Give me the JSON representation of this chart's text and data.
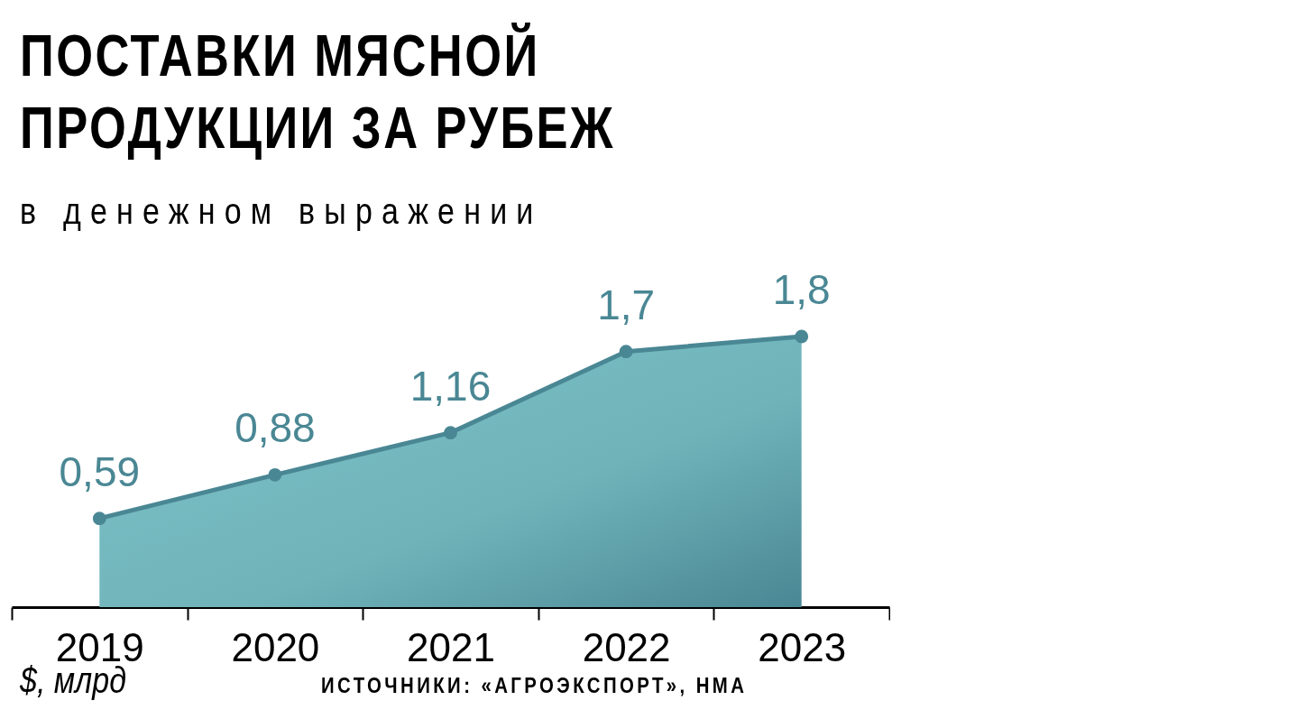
{
  "chart_data": {
    "type": "area",
    "title": "ПОСТАВКИ МЯСНОЙ ПРОДУКЦИИ ЗА РУБЕЖ",
    "subtitle": "в денежном выражении",
    "annotations": [
      "$, млрд",
      "ИСТОЧНИКИ: «АГРОЭКСПОРТ», НМА"
    ],
    "categories": [
      "2019",
      "2020",
      "2021",
      "2022",
      "2023"
    ],
    "series": [
      {
        "color": "#4a8794",
        "values": [
          0.59,
          0.88,
          1.16,
          1.7,
          1.8
        ],
        "value_labels": [
          "0,59",
          "0,88",
          "1,16",
          "1,7",
          "1,8"
        ]
      }
    ],
    "marker": "circle",
    "grid": false
  }
}
